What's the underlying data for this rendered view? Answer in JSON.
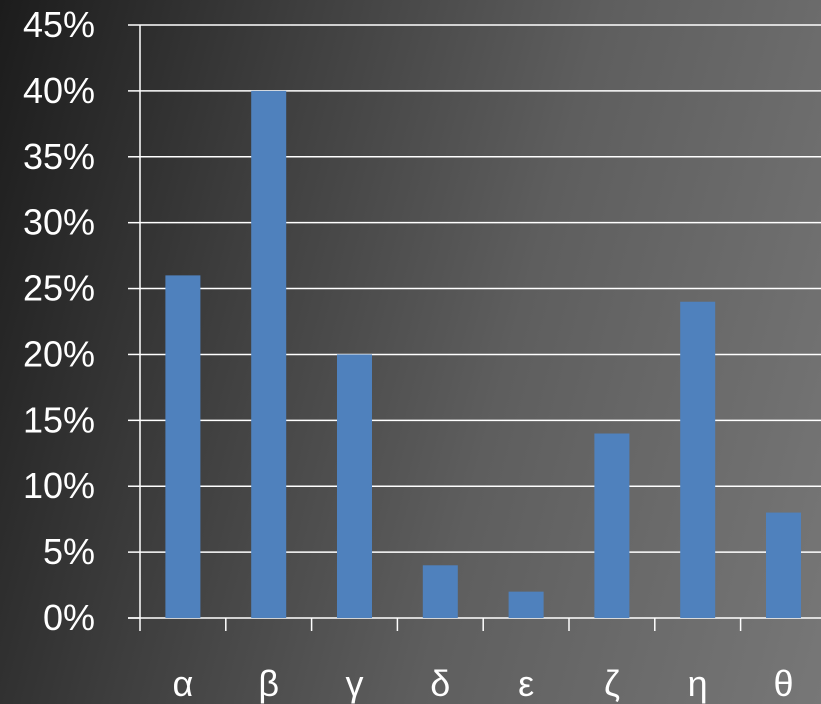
{
  "chart_data": {
    "type": "bar",
    "title": "",
    "xlabel": "",
    "ylabel": "",
    "categories": [
      "α",
      "β",
      "γ",
      "δ",
      "ε",
      "ζ",
      "η",
      "θ"
    ],
    "values": [
      26,
      40,
      20,
      4,
      2,
      14,
      24,
      8
    ],
    "y_unit": "%",
    "ylim": [
      0,
      45
    ],
    "y_ticks": [
      "0%",
      "5%",
      "10%",
      "15%",
      "20%",
      "25%",
      "30%",
      "35%",
      "40%",
      "45%"
    ],
    "grid": true,
    "legend": "none",
    "colors": {
      "bar": "#4f81bd",
      "gridline": "#ffffff",
      "text": "#ffffff"
    }
  }
}
